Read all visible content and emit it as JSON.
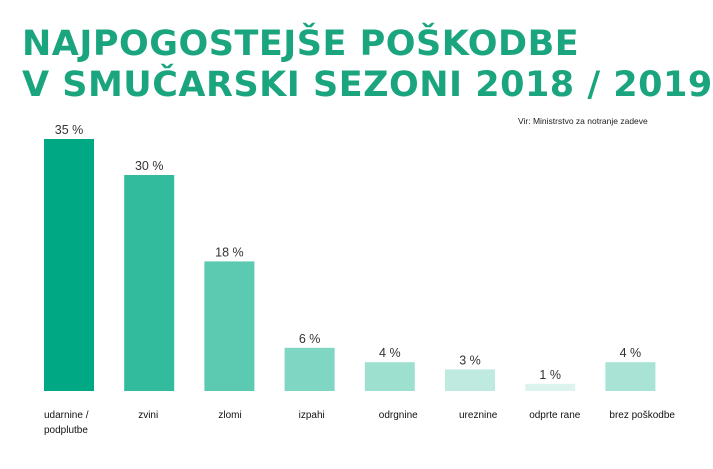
{
  "title": {
    "line1": "NAJPOGOSTEJŠE POŠKODBE",
    "line2": "V SMUČARSKI SEZONI 2018 / 2019"
  },
  "source": "Vir: Ministrstvo za notranje zadeve",
  "chart_data": {
    "type": "bar",
    "title": "NAJPOGOSTEJŠE POŠKODBE V SMUČARSKI SEZONI 2018 / 2019",
    "categories": [
      [
        "udarnine /",
        "podplutbe"
      ],
      [
        "zvini"
      ],
      [
        "zlomi"
      ],
      [
        "izpahi"
      ],
      [
        "odrgnine"
      ],
      [
        "ureznine"
      ],
      [
        "odprte rane"
      ],
      [
        "brez poškodbe"
      ]
    ],
    "values": [
      35,
      30,
      18,
      6,
      4,
      3,
      1,
      4
    ],
    "value_labels": [
      "35 %",
      "30 %",
      "18 %",
      "6 %",
      "4 %",
      "3 %",
      "1 %",
      "4 %"
    ],
    "unit": "%",
    "bar_colors": [
      "#00a884",
      "#33bb9e",
      "#5cc9b1",
      "#7fd6c2",
      "#9ee0d0",
      "#bfeadf",
      "#dcf4ed",
      "#a8e3d5"
    ],
    "ylim": [
      0,
      35
    ],
    "grid": false,
    "legend": "none"
  }
}
